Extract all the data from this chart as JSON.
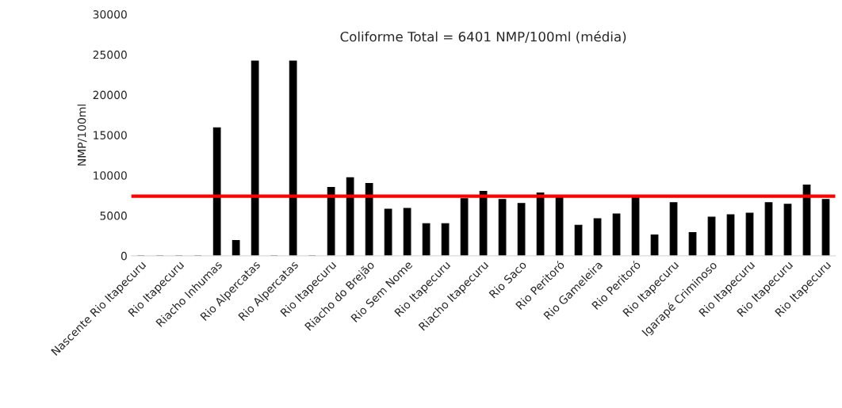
{
  "chart_data": {
    "type": "bar",
    "title": "Coliforme Total = 6401 NMP/100ml (média)",
    "ylabel": "NMP/100ml",
    "categories": [
      "Nascente Rio Itapecuru",
      null,
      "Rio Itapecuru",
      null,
      "Riacho Inhumas",
      null,
      "Rio Alpercatas",
      null,
      "Rio Alpercatas",
      null,
      "Rio Itapecuru",
      null,
      "Riacho do Brejão",
      null,
      "Rio Sem Nome",
      null,
      "Rio Itapecuru",
      null,
      "Riacho Itapecuru",
      null,
      "Rio Saco",
      null,
      "Rio Peritoró",
      null,
      "Rio Gameleira",
      null,
      "Rio Peritoró",
      null,
      "Rio Itapecuru",
      null,
      "Igarapé Criminoso",
      null,
      "Rio Itapecuru",
      null,
      "Rio Itapecuru",
      null,
      "Rio Itapecuru"
    ],
    "values": [
      0,
      0,
      0,
      0,
      15900,
      1900,
      24200,
      0,
      24200,
      0,
      8500,
      9700,
      9000,
      5800,
      5900,
      4000,
      4000,
      7100,
      8000,
      7000,
      6500,
      7800,
      7400,
      3800,
      4600,
      5200,
      7300,
      2600,
      6600,
      2900,
      4800,
      5100,
      5300,
      6600,
      6400,
      8800,
      7000
    ],
    "color": "#000000",
    "ylim": [
      0,
      30000
    ],
    "yticks": [
      0,
      5000,
      10000,
      15000,
      20000,
      25000,
      30000
    ],
    "ref_lines": [
      {
        "axis": "y",
        "value": 7400,
        "color": "#ff0000",
        "line_style": "solid"
      }
    ],
    "grid": false,
    "legend": false
  }
}
